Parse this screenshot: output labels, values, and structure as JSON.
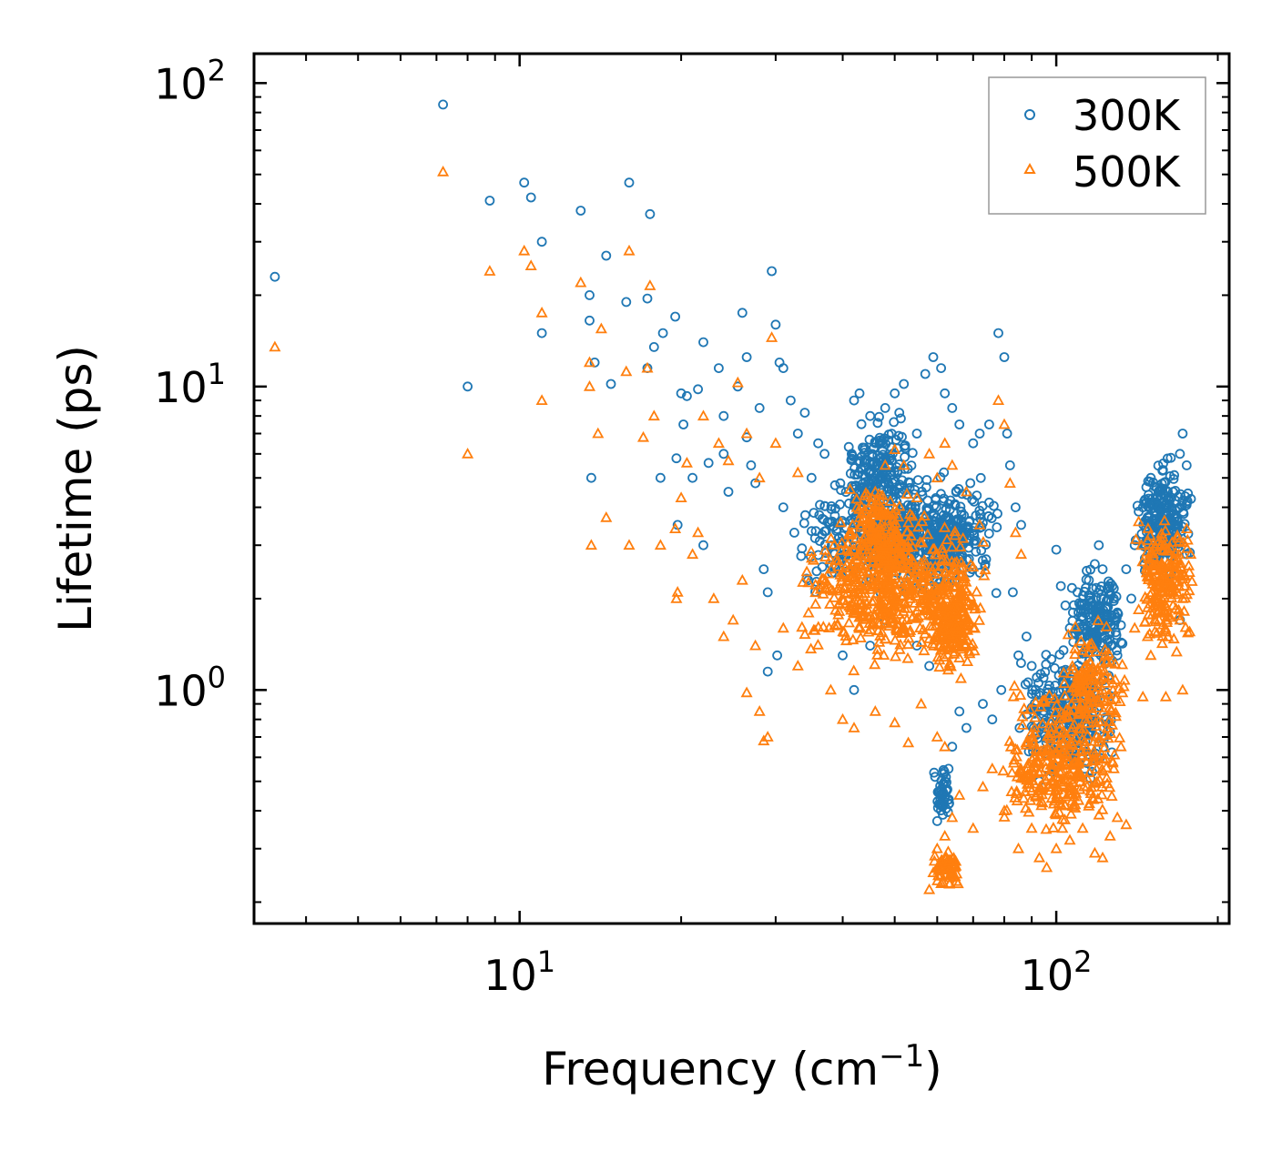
{
  "chart_data": {
    "type": "scatter",
    "title": "",
    "xlabel": "Frequency (cm",
    "xlabel_sup": "−1",
    "xlabel_close": ")",
    "ylabel": "Lifetime (ps)",
    "xscale": "log",
    "yscale": "log",
    "xlim": [
      3.2,
      210
    ],
    "ylim": [
      0.17,
      125
    ],
    "x_ticks": [
      {
        "value": 10,
        "base": "10",
        "exp": "1"
      },
      {
        "value": 100,
        "base": "10",
        "exp": "2"
      }
    ],
    "y_ticks": [
      {
        "value": 1,
        "base": "10",
        "exp": "0"
      },
      {
        "value": 10,
        "base": "10",
        "exp": "1"
      },
      {
        "value": 100,
        "base": "10",
        "exp": "2"
      }
    ],
    "legend_position": "top-right",
    "series": [
      {
        "name": "300K",
        "marker": "circle",
        "color": "#1f77b4",
        "points": [
          [
            3.5,
            23
          ],
          [
            7.2,
            85
          ],
          [
            8.0,
            10
          ],
          [
            8.8,
            41
          ],
          [
            10.2,
            47
          ],
          [
            10.5,
            42
          ],
          [
            11.0,
            30
          ],
          [
            11.0,
            15
          ],
          [
            13.0,
            38
          ],
          [
            13.5,
            20
          ],
          [
            13.5,
            16.5
          ],
          [
            13.8,
            12
          ],
          [
            14.5,
            27
          ],
          [
            14.8,
            10.2
          ],
          [
            13.6,
            5.0
          ],
          [
            16.0,
            47
          ],
          [
            15.8,
            19
          ],
          [
            17.3,
            19.5
          ],
          [
            17.5,
            37
          ],
          [
            17.8,
            13.5
          ],
          [
            18.5,
            15
          ],
          [
            17.3,
            11.5
          ],
          [
            18.3,
            5.0
          ],
          [
            19.5,
            17
          ],
          [
            19.6,
            5.8
          ],
          [
            20.0,
            9.5
          ],
          [
            20.5,
            9.3
          ],
          [
            21.5,
            9.8
          ],
          [
            22.0,
            14
          ],
          [
            23.5,
            11.5
          ],
          [
            24.0,
            8.0
          ],
          [
            24.0,
            6.0
          ],
          [
            25.5,
            10
          ],
          [
            26.0,
            17.5
          ],
          [
            26.5,
            12.5
          ],
          [
            27.0,
            5.5
          ],
          [
            28.0,
            8.5
          ],
          [
            29.5,
            24
          ],
          [
            30.0,
            16
          ],
          [
            30.5,
            12
          ],
          [
            31.0,
            11.5
          ],
          [
            32.0,
            9.0
          ],
          [
            31.0,
            4.0
          ],
          [
            29.0,
            1.15
          ],
          [
            33.0,
            7.0
          ],
          [
            19.7,
            3.5
          ],
          [
            20.2,
            7.5
          ],
          [
            21.0,
            5.0
          ],
          [
            22.5,
            5.6
          ],
          [
            28.5,
            2.5
          ],
          [
            26.5,
            6.8
          ],
          [
            30.2,
            1.3
          ],
          [
            34.0,
            8.2
          ],
          [
            35.0,
            5.0
          ],
          [
            36.0,
            6.5
          ],
          [
            37.0,
            6.0
          ],
          [
            29.0,
            2.1
          ],
          [
            22.0,
            3.0
          ],
          [
            24.5,
            4.5
          ],
          [
            27.5,
            4.8
          ],
          [
            32.5,
            3.3
          ],
          [
            34.5,
            2.3
          ],
          [
            42.0,
            9.0
          ],
          [
            43.0,
            9.5
          ],
          [
            45.0,
            8.0
          ],
          [
            46.0,
            6.5
          ],
          [
            48.0,
            8.5
          ],
          [
            50.0,
            9.5
          ],
          [
            51.0,
            8.2
          ],
          [
            52.0,
            10.2
          ],
          [
            55.0,
            7.0
          ],
          [
            57.0,
            11.0
          ],
          [
            59.0,
            12.5
          ],
          [
            61.0,
            11.5
          ],
          [
            62.0,
            9.5
          ],
          [
            64.0,
            8.5
          ],
          [
            66.0,
            7.5
          ],
          [
            70.0,
            6.5
          ],
          [
            72.0,
            7.0
          ],
          [
            75.0,
            7.5
          ],
          [
            78.0,
            15.0
          ],
          [
            80.0,
            12.5
          ],
          [
            81.0,
            7.0
          ],
          [
            82.0,
            5.5
          ],
          [
            84.0,
            4.0
          ],
          [
            86.0,
            3.5
          ],
          [
            83.0,
            2.1
          ],
          [
            88.0,
            1.5
          ],
          [
            90.0,
            1.2
          ],
          [
            92.0,
            1.1
          ],
          [
            95.0,
            0.9
          ],
          [
            98.0,
            0.7
          ],
          [
            100.0,
            2.9
          ],
          [
            102.0,
            2.2
          ],
          [
            104.0,
            1.9
          ],
          [
            106.0,
            1.6
          ],
          [
            110.0,
            1.8
          ],
          [
            112.0,
            1.5
          ],
          [
            115.0,
            2.3
          ],
          [
            118.0,
            2.6
          ],
          [
            120.0,
            3.0
          ],
          [
            122.0,
            2.5
          ],
          [
            125.0,
            2.2
          ],
          [
            128.0,
            2.0
          ],
          [
            130.0,
            1.8
          ],
          [
            135.0,
            2.5
          ],
          [
            140.0,
            3.0
          ],
          [
            145.0,
            4.0
          ],
          [
            150.0,
            5.0
          ],
          [
            155.0,
            4.5
          ],
          [
            160.0,
            3.5
          ],
          [
            165.0,
            4.5
          ],
          [
            170.0,
            6.0
          ],
          [
            172.0,
            7.0
          ],
          [
            175.0,
            5.5
          ],
          [
            60.0,
            0.37
          ],
          [
            61.0,
            0.45
          ],
          [
            62.0,
            0.5
          ],
          [
            63.0,
            0.55
          ],
          [
            64.0,
            0.65
          ],
          [
            66.0,
            0.85
          ],
          [
            68.0,
            0.75
          ],
          [
            40.0,
            1.3
          ],
          [
            42.0,
            1.0
          ],
          [
            45.0,
            1.4
          ],
          [
            48.0,
            1.7
          ],
          [
            55.0,
            1.4
          ],
          [
            58.0,
            1.2
          ],
          [
            73.0,
            0.9
          ],
          [
            76.0,
            0.8
          ],
          [
            79.0,
            1.0
          ],
          [
            85.0,
            1.3
          ],
          [
            90.0,
            0.65
          ],
          [
            93.0,
            0.5
          ],
          [
            96.0,
            0.55
          ],
          [
            100.0,
            0.8
          ],
          [
            107.0,
            0.7
          ],
          [
            113.0,
            0.55
          ],
          [
            119.0,
            0.6
          ],
          [
            124.0,
            0.8
          ],
          [
            130.0,
            1.3
          ],
          [
            138.0,
            2.0
          ],
          [
            146.0,
            2.6
          ],
          [
            155.0,
            3.0
          ],
          [
            163.0,
            2.2
          ],
          [
            170.0,
            1.7
          ],
          [
            175.0,
            2.8
          ]
        ],
        "clusters": [
          {
            "x": [
              33,
              80
            ],
            "y": [
              1.8,
              6.0
            ],
            "n": 520
          },
          {
            "x": [
              40,
              55
            ],
            "y": [
              3.5,
              8.5
            ],
            "n": 160
          },
          {
            "x": [
              55,
              72
            ],
            "y": [
              2.0,
              4.5
            ],
            "n": 150
          },
          {
            "x": [
              85,
              130
            ],
            "y": [
              0.45,
              1.5
            ],
            "n": 260
          },
          {
            "x": [
              105,
              135
            ],
            "y": [
              1.0,
              2.8
            ],
            "n": 180
          },
          {
            "x": [
              140,
              180
            ],
            "y": [
              2.2,
              6.2
            ],
            "n": 220
          },
          {
            "x": [
              59,
              64
            ],
            "y": [
              0.35,
              0.6
            ],
            "n": 45
          }
        ]
      },
      {
        "name": "500K",
        "marker": "triangle",
        "color": "#ff7f0e",
        "points": [
          [
            3.5,
            13.5
          ],
          [
            7.2,
            51
          ],
          [
            8.0,
            6.0
          ],
          [
            8.8,
            24
          ],
          [
            10.2,
            28
          ],
          [
            10.5,
            25
          ],
          [
            11.0,
            17.5
          ],
          [
            11.0,
            9.0
          ],
          [
            13.0,
            22
          ],
          [
            13.5,
            12
          ],
          [
            13.5,
            10
          ],
          [
            14.0,
            7.0
          ],
          [
            14.2,
            15.5
          ],
          [
            14.5,
            3.7
          ],
          [
            13.6,
            3.0
          ],
          [
            16.0,
            28
          ],
          [
            15.8,
            11.2
          ],
          [
            17.3,
            11.5
          ],
          [
            17.5,
            21.5
          ],
          [
            17.8,
            8.0
          ],
          [
            16.0,
            3.0
          ],
          [
            18.3,
            3.0
          ],
          [
            17.0,
            6.8
          ],
          [
            19.5,
            3.4
          ],
          [
            19.6,
            2.0
          ],
          [
            20.0,
            4.3
          ],
          [
            20.5,
            5.6
          ],
          [
            21.0,
            2.8
          ],
          [
            22.0,
            8.0
          ],
          [
            23.5,
            6.5
          ],
          [
            24.5,
            5.7
          ],
          [
            25.5,
            10.3
          ],
          [
            26.5,
            7.0
          ],
          [
            28.0,
            5.0
          ],
          [
            29.5,
            14.5
          ],
          [
            30.0,
            6.5
          ],
          [
            28.5,
            0.68
          ],
          [
            29.0,
            0.7
          ],
          [
            33.0,
            5.2
          ],
          [
            19.7,
            2.1
          ],
          [
            21.5,
            3.3
          ],
          [
            23.0,
            2.0
          ],
          [
            24.0,
            1.5
          ],
          [
            26.0,
            2.3
          ],
          [
            27.5,
            1.4
          ],
          [
            25.0,
            1.7
          ],
          [
            26.5,
            0.98
          ],
          [
            28.0,
            0.85
          ],
          [
            31.0,
            1.6
          ],
          [
            33.0,
            1.2
          ],
          [
            38.0,
            1.0
          ],
          [
            40.0,
            0.8
          ],
          [
            42.0,
            0.75
          ],
          [
            46.0,
            0.85
          ],
          [
            50.0,
            0.78
          ],
          [
            53.0,
            0.67
          ],
          [
            56.0,
            0.9
          ],
          [
            60.0,
            0.7
          ],
          [
            62.0,
            0.65
          ],
          [
            46.0,
            4.5
          ],
          [
            48.0,
            5.5
          ],
          [
            50.0,
            6.2
          ],
          [
            52.0,
            5.5
          ],
          [
            55.0,
            4.3
          ],
          [
            58.0,
            6.0
          ],
          [
            60.0,
            5.0
          ],
          [
            62.0,
            6.5
          ],
          [
            64.0,
            5.5
          ],
          [
            68.0,
            4.5
          ],
          [
            72.0,
            3.5
          ],
          [
            78.0,
            9.0
          ],
          [
            80.0,
            7.5
          ],
          [
            82.0,
            4.8
          ],
          [
            84.0,
            3.3
          ],
          [
            86.0,
            2.8
          ],
          [
            58.0,
            0.22
          ],
          [
            59.0,
            0.25
          ],
          [
            60.0,
            0.3
          ],
          [
            61.0,
            0.27
          ],
          [
            62.0,
            0.33
          ],
          [
            64.0,
            0.38
          ],
          [
            66.0,
            0.45
          ],
          [
            70.0,
            0.35
          ],
          [
            73.0,
            0.48
          ],
          [
            76.0,
            0.55
          ],
          [
            80.0,
            0.4
          ],
          [
            85.0,
            0.3
          ],
          [
            90.0,
            0.35
          ],
          [
            93.0,
            0.28
          ],
          [
            96.0,
            0.26
          ],
          [
            100.0,
            0.3
          ],
          [
            106.0,
            0.32
          ],
          [
            112.0,
            0.35
          ],
          [
            118.0,
            0.29
          ],
          [
            122.0,
            0.28
          ],
          [
            126.0,
            0.33
          ],
          [
            130.0,
            0.38
          ],
          [
            135.0,
            0.36
          ],
          [
            140.0,
            1.6
          ],
          [
            148.0,
            1.5
          ],
          [
            155.0,
            2.0
          ],
          [
            160.0,
            2.3
          ],
          [
            165.0,
            1.9
          ],
          [
            170.0,
            1.7
          ],
          [
            172.0,
            1.0
          ],
          [
            175.0,
            3.4
          ],
          [
            178.0,
            2.8
          ],
          [
            145.0,
            0.95
          ],
          [
            150.0,
            1.3
          ],
          [
            160.0,
            0.95
          ],
          [
            128.0,
            0.55
          ],
          [
            132.0,
            0.65
          ]
        ],
        "clusters": [
          {
            "x": [
              33,
              75
            ],
            "y": [
              1.1,
              4.2
            ],
            "n": 560
          },
          {
            "x": [
              40,
              55
            ],
            "y": [
              2.0,
              5.5
            ],
            "n": 160
          },
          {
            "x": [
              58,
              72
            ],
            "y": [
              1.0,
              2.6
            ],
            "n": 180
          },
          {
            "x": [
              78,
              135
            ],
            "y": [
              0.3,
              1.1
            ],
            "n": 320
          },
          {
            "x": [
              100,
              135
            ],
            "y": [
              0.6,
              1.8
            ],
            "n": 140
          },
          {
            "x": [
              140,
              180
            ],
            "y": [
              1.2,
              4.2
            ],
            "n": 200
          },
          {
            "x": [
              59,
              66
            ],
            "y": [
              0.21,
              0.32
            ],
            "n": 50
          }
        ]
      }
    ]
  }
}
